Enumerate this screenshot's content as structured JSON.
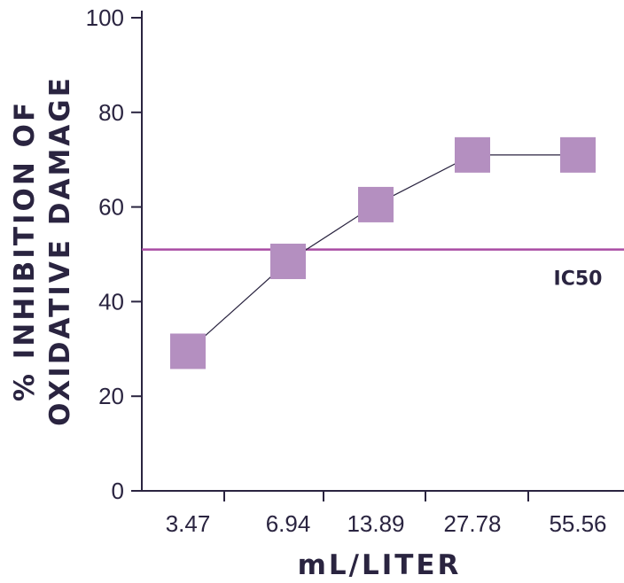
{
  "chart_data": {
    "type": "line",
    "x_categories": [
      "3.47",
      "6.94",
      "13.89",
      "27.78",
      "55.56"
    ],
    "series": [
      {
        "values": [
          29.5,
          48.5,
          60.5,
          71,
          71
        ]
      }
    ],
    "xlabel": "mL/LITER",
    "ylabel_lines": [
      "% INHIBITION OF",
      "OXIDATIVE DAMAGE"
    ],
    "y_ticks": [
      "0",
      "20",
      "40",
      "60",
      "80",
      "100"
    ],
    "ylim": [
      0,
      100
    ],
    "reference_line": {
      "label": "IC50",
      "value": 51
    },
    "grid": false,
    "colors": {
      "marker": "#b48fc0",
      "line": "#2a2440",
      "reference": "#a94ba3",
      "axis": "#2a2440",
      "text": "#2a2440"
    }
  }
}
